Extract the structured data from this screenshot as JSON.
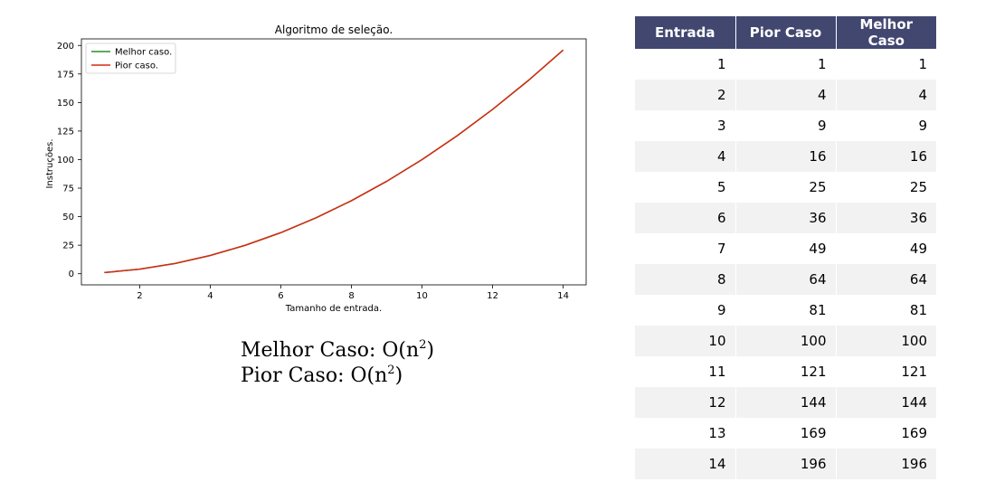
{
  "chart_data": {
    "type": "line",
    "title": "Algoritmo de seleção.",
    "xlabel": "Tamanho de entrada.",
    "ylabel": "Instruções.",
    "x": [
      1,
      2,
      3,
      4,
      5,
      6,
      7,
      8,
      9,
      10,
      11,
      12,
      13,
      14
    ],
    "series": [
      {
        "name": "Melhor caso.",
        "color": "#2e8b2e",
        "values": [
          1,
          4,
          9,
          16,
          25,
          36,
          49,
          64,
          81,
          100,
          121,
          144,
          169,
          196
        ]
      },
      {
        "name": "Pior caso.",
        "color": "#d62a12",
        "values": [
          1,
          4,
          9,
          16,
          25,
          36,
          49,
          64,
          81,
          100,
          121,
          144,
          169,
          196
        ]
      }
    ],
    "xlim": [
      0.35,
      14.65
    ],
    "ylim": [
      -9.75,
      205.75
    ],
    "xticks": [
      2,
      4,
      6,
      8,
      10,
      12,
      14
    ],
    "yticks": [
      0,
      25,
      50,
      75,
      100,
      125,
      150,
      175,
      200
    ],
    "grid": false,
    "legend_position": "upper-left"
  },
  "complexity": {
    "best_label": "Melhor Caso: O(n",
    "worst_label": "Pior Caso: O(n",
    "exponent": "2",
    "close": ")"
  },
  "table": {
    "headers": [
      "Entrada",
      "Pior Caso",
      "Melhor Caso"
    ],
    "rows": [
      [
        "1",
        "1",
        "1"
      ],
      [
        "2",
        "4",
        "4"
      ],
      [
        "3",
        "9",
        "9"
      ],
      [
        "4",
        "16",
        "16"
      ],
      [
        "5",
        "25",
        "25"
      ],
      [
        "6",
        "36",
        "36"
      ],
      [
        "7",
        "49",
        "49"
      ],
      [
        "8",
        "64",
        "64"
      ],
      [
        "9",
        "81",
        "81"
      ],
      [
        "10",
        "100",
        "100"
      ],
      [
        "11",
        "121",
        "121"
      ],
      [
        "12",
        "144",
        "144"
      ],
      [
        "13",
        "169",
        "169"
      ],
      [
        "14",
        "196",
        "196"
      ]
    ]
  }
}
